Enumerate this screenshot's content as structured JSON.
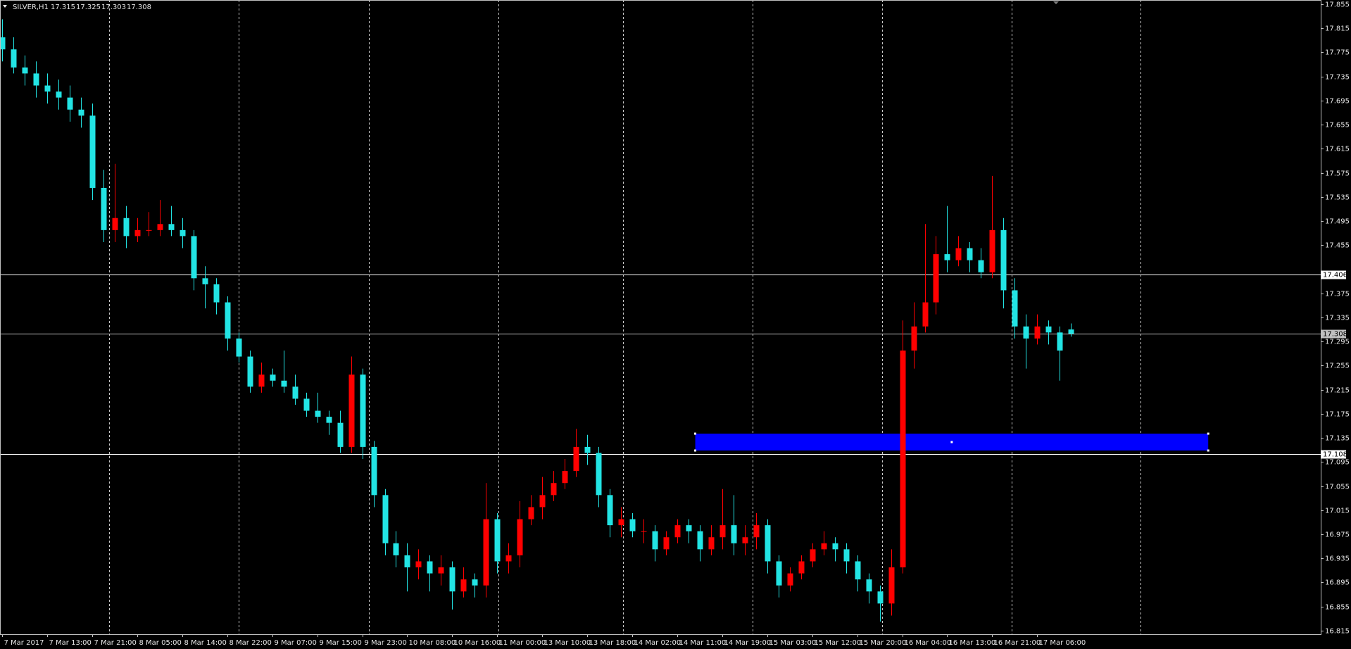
{
  "chart_data": {
    "type": "candlestick",
    "symbol": "SILVER,H1",
    "up_color": "#ff0000",
    "down_color": "#22e4e4",
    "open": [
      17.8,
      17.78,
      17.75,
      17.74,
      17.72,
      17.71,
      17.7,
      17.68,
      17.67,
      17.55,
      17.48,
      17.5,
      17.47,
      17.48,
      17.48,
      17.49,
      17.48,
      17.47,
      17.4,
      17.39,
      17.36,
      17.3,
      17.27,
      17.22,
      17.24,
      17.23,
      17.22,
      17.2,
      17.18,
      17.17,
      17.16,
      17.12,
      17.24,
      17.12,
      17.04,
      16.96,
      16.94,
      16.92,
      16.93,
      16.91,
      16.92,
      16.88,
      16.9,
      16.89,
      17.0,
      16.93,
      16.94,
      17.0,
      17.02,
      17.04,
      17.06,
      17.08,
      17.12,
      17.11,
      17.04,
      16.99,
      17.0,
      16.98,
      16.98,
      16.95,
      16.97,
      16.99,
      16.98,
      16.95,
      16.97,
      16.99,
      16.96,
      16.97,
      16.99,
      16.93,
      16.89,
      16.91,
      16.93,
      16.95,
      16.96,
      16.95,
      16.93,
      16.9,
      16.88,
      16.86,
      16.92,
      17.28,
      17.32,
      17.36,
      17.44,
      17.43,
      17.45,
      17.43,
      17.41,
      17.48,
      17.38,
      17.32,
      17.3,
      17.32,
      17.31,
      17.315
    ],
    "high": [
      17.83,
      17.8,
      17.77,
      17.76,
      17.74,
      17.73,
      17.72,
      17.7,
      17.69,
      17.58,
      17.59,
      17.52,
      17.5,
      17.51,
      17.53,
      17.52,
      17.5,
      17.48,
      17.42,
      17.4,
      17.37,
      17.31,
      17.28,
      17.26,
      17.25,
      17.28,
      17.24,
      17.21,
      17.21,
      17.18,
      17.18,
      17.27,
      17.25,
      17.13,
      17.05,
      16.98,
      16.96,
      16.95,
      16.94,
      16.94,
      16.93,
      16.92,
      16.91,
      17.06,
      17.01,
      16.96,
      17.03,
      17.04,
      17.07,
      17.08,
      17.1,
      17.15,
      17.14,
      17.12,
      17.05,
      17.02,
      17.01,
      17.0,
      16.99,
      16.98,
      17.0,
      17.0,
      16.99,
      16.99,
      17.05,
      17.04,
      16.99,
      17.01,
      17.0,
      16.94,
      16.92,
      16.94,
      16.96,
      16.98,
      16.97,
      16.96,
      16.94,
      16.91,
      16.89,
      16.95,
      17.33,
      17.36,
      17.49,
      17.47,
      17.52,
      17.47,
      17.46,
      17.45,
      17.57,
      17.5,
      17.4,
      17.34,
      17.34,
      17.33,
      17.32,
      17.325
    ],
    "low": [
      17.76,
      17.74,
      17.72,
      17.7,
      17.69,
      17.68,
      17.66,
      17.65,
      17.53,
      17.46,
      17.46,
      17.45,
      17.46,
      17.47,
      17.47,
      17.47,
      17.45,
      17.38,
      17.35,
      17.34,
      17.28,
      17.26,
      17.21,
      17.21,
      17.22,
      17.21,
      17.19,
      17.17,
      17.16,
      17.14,
      17.11,
      17.11,
      17.1,
      17.02,
      16.94,
      16.92,
      16.88,
      16.9,
      16.88,
      16.89,
      16.85,
      16.87,
      16.87,
      16.87,
      16.91,
      16.91,
      16.92,
      16.99,
      17.0,
      17.03,
      17.05,
      17.07,
      17.09,
      17.02,
      16.97,
      16.97,
      16.97,
      16.96,
      16.93,
      16.94,
      16.96,
      16.96,
      16.93,
      16.94,
      16.95,
      16.94,
      16.94,
      16.95,
      16.91,
      16.87,
      16.88,
      16.9,
      16.92,
      16.94,
      16.93,
      16.91,
      16.88,
      16.86,
      16.83,
      16.84,
      16.91,
      17.25,
      17.31,
      17.34,
      17.41,
      17.42,
      17.41,
      17.4,
      17.4,
      17.35,
      17.3,
      17.25,
      17.29,
      17.29,
      17.23,
      17.303
    ],
    "close": [
      17.78,
      17.75,
      17.74,
      17.72,
      17.71,
      17.7,
      17.68,
      17.67,
      17.55,
      17.48,
      17.5,
      17.47,
      17.48,
      17.48,
      17.49,
      17.48,
      17.47,
      17.4,
      17.39,
      17.36,
      17.3,
      17.27,
      17.22,
      17.24,
      17.23,
      17.22,
      17.2,
      17.18,
      17.17,
      17.16,
      17.12,
      17.24,
      17.12,
      17.04,
      16.96,
      16.94,
      16.92,
      16.93,
      16.91,
      16.92,
      16.88,
      16.9,
      16.89,
      17.0,
      16.93,
      16.94,
      17.0,
      17.02,
      17.04,
      17.06,
      17.08,
      17.12,
      17.11,
      17.04,
      16.99,
      17.0,
      16.98,
      16.98,
      16.95,
      16.97,
      16.99,
      16.98,
      16.95,
      16.97,
      16.99,
      16.96,
      16.97,
      16.99,
      16.93,
      16.89,
      16.91,
      16.93,
      16.95,
      16.96,
      16.95,
      16.93,
      16.9,
      16.88,
      16.86,
      16.92,
      17.28,
      17.32,
      17.36,
      17.44,
      17.43,
      17.45,
      17.43,
      17.41,
      17.48,
      17.38,
      17.32,
      17.3,
      17.32,
      17.31,
      17.28,
      17.308
    ],
    "xlim": [
      -0.2,
      117.2
    ],
    "ylim": [
      16.809,
      17.862
    ],
    "yticks": [
      17.855,
      17.815,
      17.775,
      17.735,
      17.695,
      17.655,
      17.615,
      17.575,
      17.535,
      17.495,
      17.455,
      17.375,
      17.335,
      17.295,
      17.255,
      17.215,
      17.175,
      17.135,
      17.095,
      17.055,
      17.015,
      16.975,
      16.935,
      16.895,
      16.855,
      16.815
    ],
    "xticks": [
      {
        "value": 0,
        "label": "7 Mar 2017"
      },
      {
        "value": 4,
        "label": "7 Mar 13:00"
      },
      {
        "value": 8,
        "label": "7 Mar 21:00"
      },
      {
        "value": 12,
        "label": "8 Mar 05:00"
      },
      {
        "value": 16,
        "label": "8 Mar 14:00"
      },
      {
        "value": 20,
        "label": "8 Mar 22:00"
      },
      {
        "value": 24,
        "label": "9 Mar 07:00"
      },
      {
        "value": 28,
        "label": "9 Mar 15:00"
      },
      {
        "value": 32,
        "label": "9 Mar 23:00"
      },
      {
        "value": 36,
        "label": "10 Mar 08:00"
      },
      {
        "value": 40,
        "label": "10 Mar 16:00"
      },
      {
        "value": 44,
        "label": "11 Mar 00:00"
      },
      {
        "value": 48,
        "label": "13 Mar 10:00"
      },
      {
        "value": 52,
        "label": "13 Mar 18:00"
      },
      {
        "value": 56,
        "label": "14 Mar 02:00"
      },
      {
        "value": 60,
        "label": "14 Mar 11:00"
      },
      {
        "value": 64,
        "label": "14 Mar 19:00"
      },
      {
        "value": 68,
        "label": "15 Mar 03:00"
      },
      {
        "value": 72,
        "label": "15 Mar 12:00"
      },
      {
        "value": 76,
        "label": "15 Mar 20:00"
      },
      {
        "value": 80,
        "label": "16 Mar 04:00"
      },
      {
        "value": 84,
        "label": "16 Mar 13:00"
      },
      {
        "value": 88,
        "label": "16 Mar 21:00"
      },
      {
        "value": 92,
        "label": "17 Mar 06:00"
      }
    ],
    "xgrid": [
      9.5,
      21.0,
      32.6,
      44.1,
      55.2,
      66.7,
      78.2,
      89.7,
      101.2
    ],
    "hlines": [
      {
        "value": 17.406,
        "color": "#ffffff"
      },
      {
        "value": 17.308,
        "color": "#c0c0c0"
      },
      {
        "value": 17.108,
        "color": "#ffffff"
      }
    ],
    "rectangle": {
      "x1": 61.6,
      "x2": 107.2,
      "price1": 17.142,
      "price2": 17.114,
      "color": "#0000ff"
    }
  }
}
